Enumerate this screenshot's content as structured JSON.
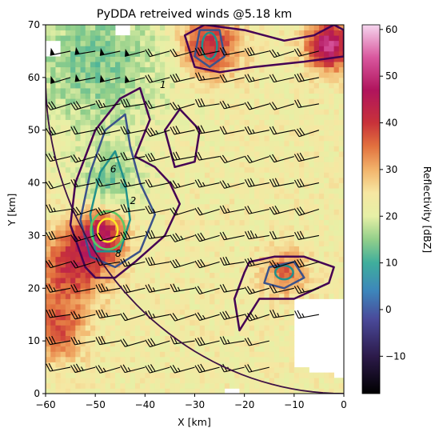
{
  "chart_data": {
    "type": "heatmap",
    "title": "PyDDA retreived winds @5.18 km",
    "xlabel": "X [km]",
    "ylabel": "Y [km]",
    "xlim": [
      -60,
      0
    ],
    "ylim": [
      0,
      70
    ],
    "x_ticks": [
      -60,
      -50,
      -40,
      -30,
      -20,
      -10,
      0
    ],
    "y_ticks": [
      0,
      10,
      20,
      30,
      40,
      50,
      60,
      70
    ],
    "grid": false,
    "colorbar": {
      "label": "Reflectivity [dBZ]",
      "range": [
        -18,
        61
      ],
      "ticks": [
        -10,
        0,
        10,
        20,
        30,
        40,
        50,
        60
      ],
      "colormap": "pyart_HomeyerRainbow",
      "stops": [
        {
          "v": -18,
          "c": "#000000"
        },
        {
          "v": -10,
          "c": "#2c1a4a"
        },
        {
          "v": -2,
          "c": "#4a4a9a"
        },
        {
          "v": 4,
          "c": "#3d86bb"
        },
        {
          "v": 10,
          "c": "#3fae9c"
        },
        {
          "v": 15,
          "c": "#92cf8a"
        },
        {
          "v": 20,
          "c": "#e6f0a6"
        },
        {
          "v": 25,
          "c": "#f6e7a2"
        },
        {
          "v": 30,
          "c": "#f2b36b"
        },
        {
          "v": 35,
          "c": "#e2713e"
        },
        {
          "v": 40,
          "c": "#c8323a"
        },
        {
          "v": 47,
          "c": "#b0145d"
        },
        {
          "v": 54,
          "c": "#d9579e"
        },
        {
          "v": 61,
          "c": "#f6d6ef"
        }
      ]
    },
    "reflectivity_field": {
      "background_dbz": 23,
      "features": [
        {
          "name": "convective core",
          "x": -49,
          "y": 30,
          "peak_dbz": 45,
          "spread_km": 3.5
        },
        {
          "name": "convective band",
          "x": -55,
          "y": 24,
          "peak_dbz": 40,
          "spread_km": 5
        },
        {
          "name": "southwest band",
          "x": -58,
          "y": 12,
          "peak_dbz": 37,
          "spread_km": 4
        },
        {
          "name": "north cell",
          "x": -27,
          "y": 66,
          "peak_dbz": 42,
          "spread_km": 4
        },
        {
          "name": "northeast cell",
          "x": -3,
          "y": 66,
          "peak_dbz": 52,
          "spread_km": 3
        },
        {
          "name": "east cell",
          "x": -12,
          "y": 23,
          "peak_dbz": 36,
          "spread_km": 3
        },
        {
          "name": "northwest stratiform",
          "x": -50,
          "y": 63,
          "peak_dbz": 14,
          "spread_km": 10
        },
        {
          "name": "updraft low",
          "x": -47,
          "y": 40,
          "peak_dbz": 14,
          "spread_km": 4
        }
      ]
    },
    "updraft_contours": {
      "levels": [
        1,
        2,
        4,
        6,
        8
      ],
      "colors": [
        "#440154",
        "#3b528b",
        "#21918c",
        "#5ec962",
        "#fde725"
      ],
      "labels_shown": [
        "1",
        "2",
        "6",
        "8"
      ]
    },
    "wind_barbs": {
      "spacing_km": 5,
      "dominant_direction": "westerly",
      "speed_range_mps": [
        20,
        35
      ]
    },
    "radar_range_ring": {
      "center": [
        0,
        60
      ],
      "radius_km": 60
    }
  }
}
